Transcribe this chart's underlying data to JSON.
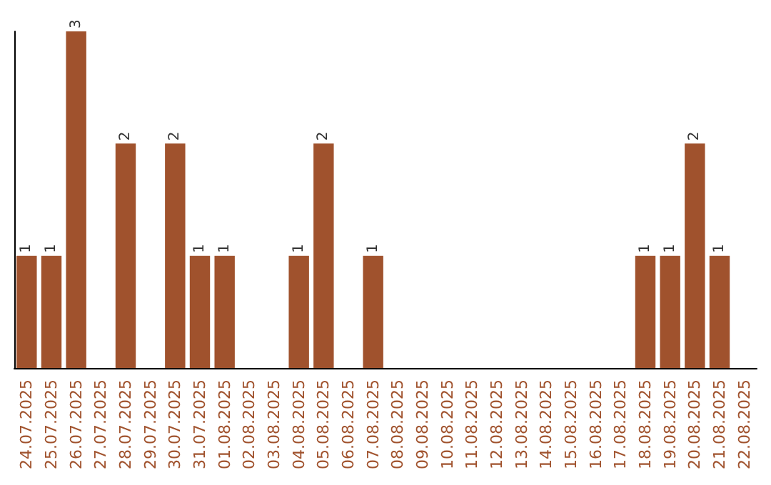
{
  "chart_data": {
    "type": "bar",
    "categories": [
      "24.07.2025",
      "25.07.2025",
      "26.07.2025",
      "27.07.2025",
      "28.07.2025",
      "29.07.2025",
      "30.07.2025",
      "31.07.2025",
      "01.08.2025",
      "02.08.2025",
      "03.08.2025",
      "04.08.2025",
      "05.08.2025",
      "06.08.2025",
      "07.08.2025",
      "08.08.2025",
      "09.08.2025",
      "10.08.2025",
      "11.08.2025",
      "12.08.2025",
      "13.08.2025",
      "14.08.2025",
      "15.08.2025",
      "16.08.2025",
      "17.08.2025",
      "18.08.2025",
      "19.08.2025",
      "20.08.2025",
      "21.08.2025",
      "22.08.2025"
    ],
    "values": [
      1,
      1,
      3,
      0,
      2,
      0,
      2,
      1,
      1,
      0,
      0,
      1,
      2,
      0,
      1,
      0,
      0,
      0,
      0,
      0,
      0,
      0,
      0,
      0,
      0,
      1,
      1,
      2,
      1,
      0
    ],
    "value_labels": [
      "1",
      "1",
      "3",
      null,
      "2",
      null,
      "2",
      "1",
      "1",
      null,
      null,
      "1",
      "2",
      null,
      "1",
      null,
      null,
      null,
      null,
      null,
      null,
      null,
      null,
      null,
      null,
      "1",
      "1",
      "2",
      "1",
      null
    ],
    "color": "#a0522d",
    "tick_labels": "x",
    "grid": false
  }
}
